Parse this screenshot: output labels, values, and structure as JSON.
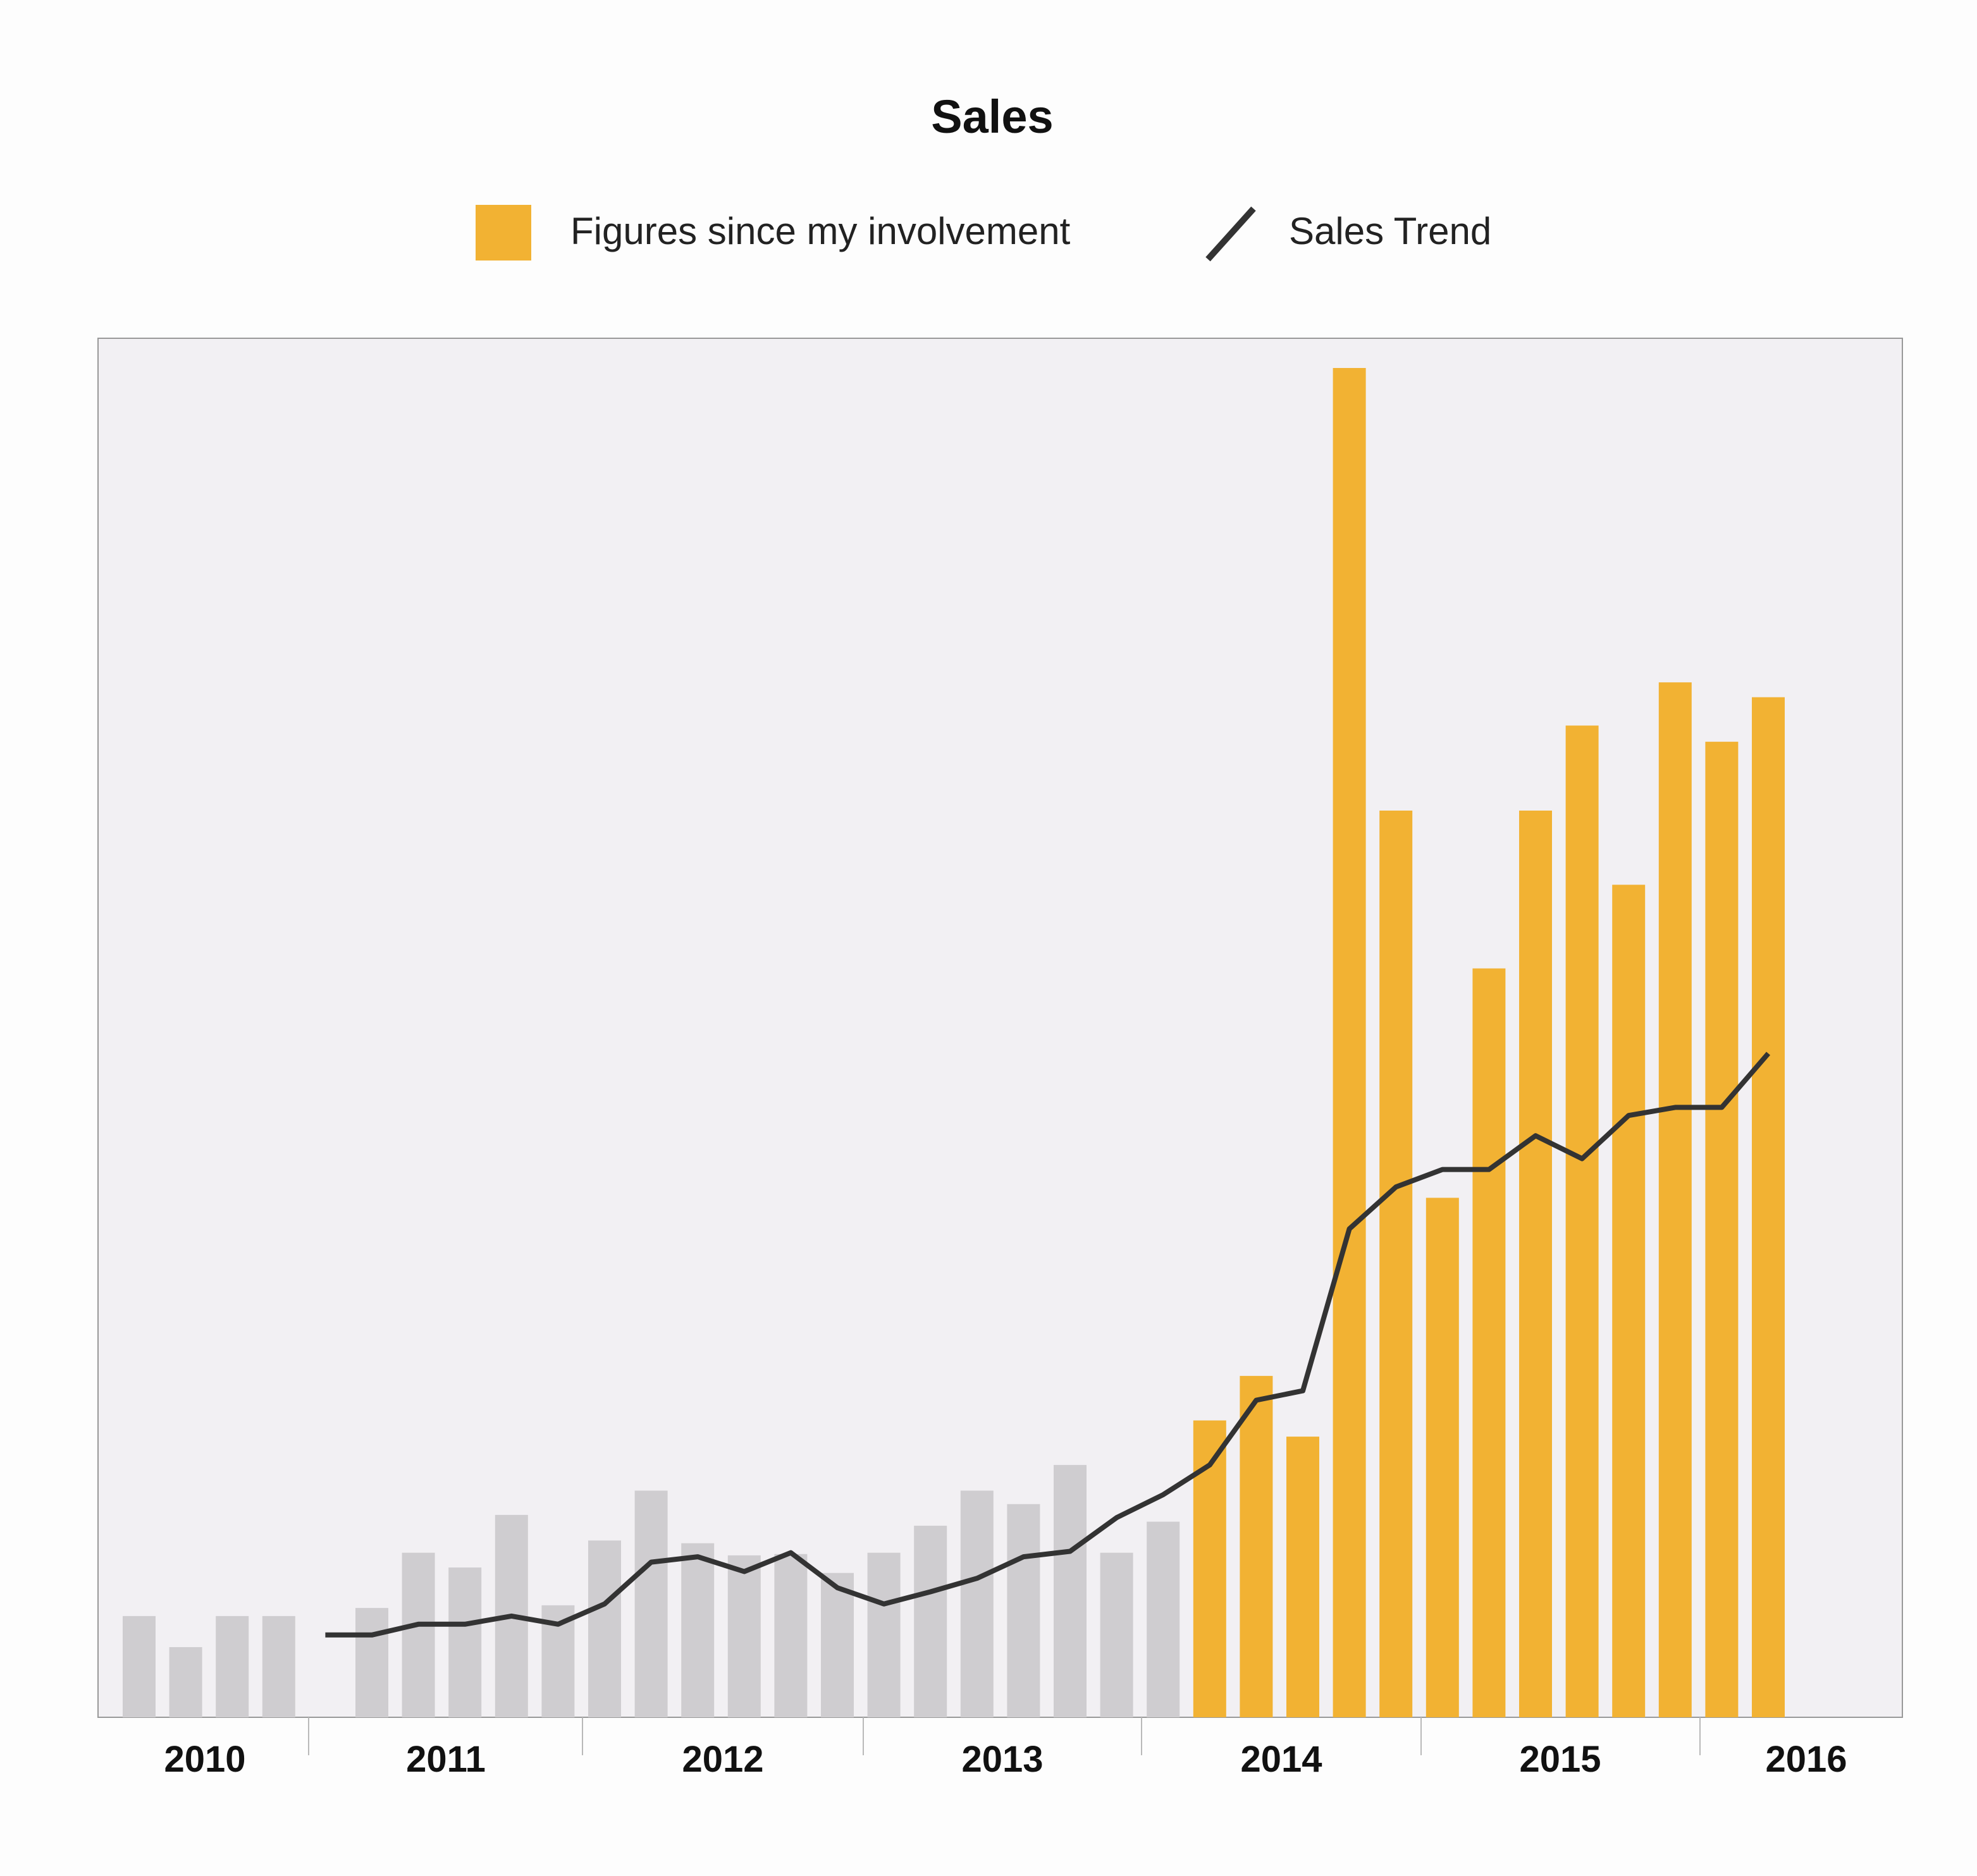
{
  "chart_data": {
    "type": "bar",
    "title": "Sales",
    "xlabel": "",
    "ylabel": "",
    "grid": false,
    "legend_position": "top-center",
    "legend": [
      {
        "label": "Figures since my involvement",
        "kind": "bar-swatch",
        "color": "#f2b233"
      },
      {
        "label": "Sales Trend",
        "kind": "line",
        "color": "#333333"
      }
    ],
    "colors": {
      "before": "#cfcdd0",
      "involvement": "#f2b233",
      "trend": "#333333",
      "plot_background": "#f2f0f3",
      "plot_border": "#999999"
    },
    "x_ticks": [
      "2010",
      "2011",
      "2012",
      "2013",
      "2014",
      "2015",
      "2016"
    ],
    "year_dividers": [
      "2010-2011",
      "2011-2012",
      "2012-2013",
      "2013-2014",
      "2014-2015",
      "2015-2016"
    ],
    "ylim": [
      0,
      100
    ],
    "series": [
      {
        "name": "Figures since my involvement",
        "values": [
          7.5,
          5.2,
          7.5,
          7.5,
          null,
          8.1,
          12.2,
          11.1,
          15.0,
          8.3,
          13.1,
          16.8,
          12.9,
          12.0,
          12.1,
          10.7,
          12.2,
          14.2,
          16.8,
          15.8,
          18.7,
          12.2,
          14.5,
          22.0,
          25.3,
          20.8,
          100.0,
          67.2,
          38.5,
          55.5,
          67.2,
          73.5,
          61.7,
          76.7,
          72.3,
          75.6
        ],
        "involvement_from_index": 23
      },
      {
        "name": "Sales Trend",
        "values": [
          null,
          null,
          null,
          null,
          6.1,
          6.1,
          6.9,
          6.9,
          7.5,
          6.9,
          8.4,
          11.5,
          11.9,
          10.8,
          12.2,
          9.6,
          8.4,
          9.3,
          10.3,
          11.9,
          12.3,
          14.8,
          16.5,
          18.7,
          23.5,
          24.2,
          36.2,
          39.3,
          40.6,
          40.6,
          43.1,
          41.4,
          44.6,
          45.2,
          45.2,
          49.2
        ]
      }
    ]
  }
}
